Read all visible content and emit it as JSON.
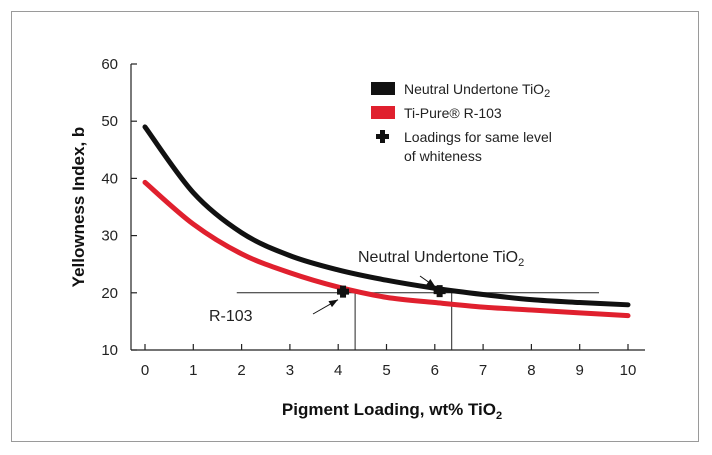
{
  "chart_data": {
    "type": "line",
    "xlabel": "Pigment Loading, wt% TiO",
    "xlabel_sub": "2",
    "ylabel": "Yellowness Index, b",
    "xlim": [
      0,
      10
    ],
    "ylim": [
      10,
      60
    ],
    "xticks": [
      "0",
      "1",
      "2",
      "3",
      "4",
      "5",
      "6",
      "7",
      "8",
      "9",
      "10"
    ],
    "yticks": [
      "10",
      "20",
      "30",
      "40",
      "50",
      "60"
    ],
    "grid": false,
    "legend_position": "top-right",
    "series": [
      {
        "name": "Neutral Undertone TiO",
        "name_sub": "2",
        "color": "#111111",
        "x": [
          0,
          1,
          2,
          3,
          4,
          5,
          6,
          7,
          8,
          9,
          10
        ],
        "y": [
          49,
          37.5,
          30.5,
          26.5,
          24,
          22.2,
          20.8,
          19.7,
          18.8,
          18.3,
          17.9
        ]
      },
      {
        "name": "Ti-Pure® R-103",
        "color": "#e0202e",
        "x": [
          0,
          1,
          2,
          3,
          4,
          5,
          6,
          7,
          8,
          9,
          10
        ],
        "y": [
          39.3,
          32,
          26.8,
          23.5,
          21,
          19.2,
          18.3,
          17.5,
          17.0,
          16.5,
          16.0
        ]
      }
    ],
    "marker_legend": {
      "line1": "Loadings for same level",
      "line2": "of whiteness"
    },
    "reference_level": 20,
    "markers": [
      {
        "label": "R-103",
        "x": 4.1,
        "y": 20.2,
        "drop_x": 4.35
      },
      {
        "label": "Neutral Undertone TiO",
        "label_sub": "2",
        "x": 6.1,
        "y": 20.3,
        "drop_x": 6.35
      }
    ]
  }
}
